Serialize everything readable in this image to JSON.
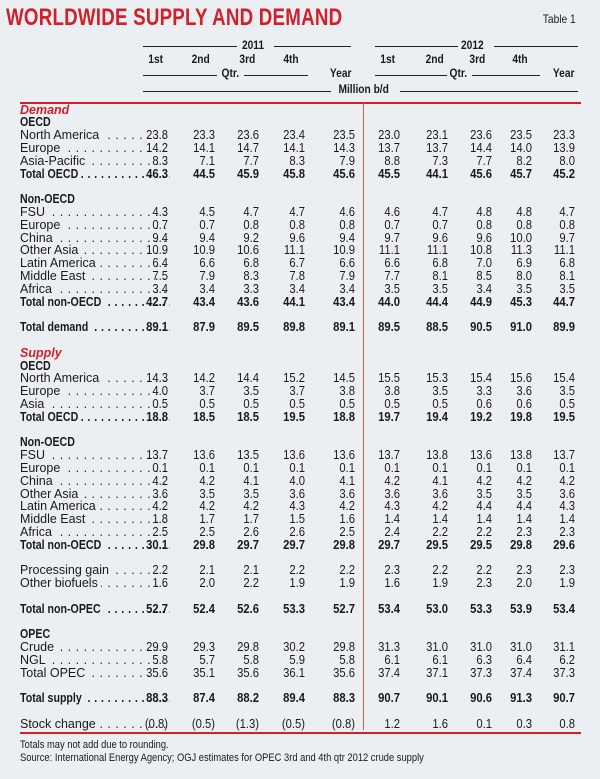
{
  "title": "WORLDWIDE SUPPLY AND DEMAND",
  "table_number": "Table 1",
  "header": {
    "years": [
      "2011",
      "2012"
    ],
    "quarters": [
      "1st",
      "2nd",
      "3rd",
      "4th"
    ],
    "qtr_label": "Qtr.",
    "year_label": "Year",
    "unit": "Million b/d"
  },
  "accent_color": "#d0202a",
  "rows": [
    {
      "type": "section",
      "label": "Demand"
    },
    {
      "type": "group",
      "label": "OECD"
    },
    {
      "type": "row",
      "label": "North America",
      "values": [
        "23.8",
        "23.3",
        "23.6",
        "23.4",
        "23.5",
        "23.0",
        "23.1",
        "23.6",
        "23.5",
        "23.3"
      ]
    },
    {
      "type": "row",
      "label": "Europe",
      "values": [
        "14.2",
        "14.1",
        "14.7",
        "14.1",
        "14.3",
        "13.7",
        "13.7",
        "14.4",
        "14.0",
        "13.9"
      ]
    },
    {
      "type": "row",
      "label": "Asia-Pacific",
      "values": [
        "8.3",
        "7.1",
        "7.7",
        "8.3",
        "7.9",
        "8.8",
        "7.3",
        "7.7",
        "8.2",
        "8.0"
      ]
    },
    {
      "type": "total",
      "label": "Total OECD",
      "values": [
        "46.3",
        "44.5",
        "45.9",
        "45.8",
        "45.6",
        "45.5",
        "44.1",
        "45.6",
        "45.7",
        "45.2"
      ]
    },
    {
      "type": "spacer"
    },
    {
      "type": "group",
      "label": "Non-OECD"
    },
    {
      "type": "row",
      "label": "FSU",
      "values": [
        "4.3",
        "4.5",
        "4.7",
        "4.7",
        "4.6",
        "4.6",
        "4.7",
        "4.8",
        "4.8",
        "4.7"
      ]
    },
    {
      "type": "row",
      "label": "Europe",
      "values": [
        "0.7",
        "0.7",
        "0.8",
        "0.8",
        "0.8",
        "0.7",
        "0.7",
        "0.8",
        "0.8",
        "0.8"
      ]
    },
    {
      "type": "row",
      "label": "China",
      "values": [
        "9.4",
        "9.4",
        "9.2",
        "9.6",
        "9.4",
        "9.7",
        "9.6",
        "9.6",
        "10.0",
        "9.7"
      ]
    },
    {
      "type": "row",
      "label": "Other Asia",
      "values": [
        "10.9",
        "10.9",
        "10.6",
        "11.1",
        "10.9",
        "11.1",
        "11.1",
        "10.8",
        "11.3",
        "11.1"
      ]
    },
    {
      "type": "row",
      "label": "Latin America",
      "values": [
        "6.4",
        "6.6",
        "6.8",
        "6.7",
        "6.6",
        "6.6",
        "6.8",
        "7.0",
        "6.9",
        "6.8"
      ]
    },
    {
      "type": "row",
      "label": "Middle East",
      "values": [
        "7.5",
        "7.9",
        "8.3",
        "7.8",
        "7.9",
        "7.7",
        "8.1",
        "8.5",
        "8.0",
        "8.1"
      ]
    },
    {
      "type": "row",
      "label": "Africa",
      "values": [
        "3.4",
        "3.4",
        "3.3",
        "3.4",
        "3.4",
        "3.5",
        "3.5",
        "3.4",
        "3.5",
        "3.5"
      ]
    },
    {
      "type": "total",
      "label": "Total non-OECD",
      "values": [
        "42.7",
        "43.4",
        "43.6",
        "44.1",
        "43.4",
        "44.0",
        "44.4",
        "44.9",
        "45.3",
        "44.7"
      ]
    },
    {
      "type": "spacer"
    },
    {
      "type": "total",
      "label": "Total demand",
      "values": [
        "89.1",
        "87.9",
        "89.5",
        "89.8",
        "89.1",
        "89.5",
        "88.5",
        "90.5",
        "91.0",
        "89.9"
      ]
    },
    {
      "type": "spacer"
    },
    {
      "type": "section",
      "label": "Supply"
    },
    {
      "type": "group",
      "label": "OECD"
    },
    {
      "type": "row",
      "label": "North America",
      "values": [
        "14.3",
        "14.2",
        "14.4",
        "15.2",
        "14.5",
        "15.5",
        "15.3",
        "15.4",
        "15.6",
        "15.4"
      ]
    },
    {
      "type": "row",
      "label": "Europe",
      "values": [
        "4.0",
        "3.7",
        "3.5",
        "3.7",
        "3.8",
        "3.8",
        "3.5",
        "3.3",
        "3.6",
        "3.5"
      ]
    },
    {
      "type": "row",
      "label": "Asia",
      "values": [
        "0.5",
        "0.5",
        "0.5",
        "0.5",
        "0.5",
        "0.5",
        "0.5",
        "0.6",
        "0.6",
        "0.5"
      ]
    },
    {
      "type": "total",
      "label": "Total OECD",
      "values": [
        "18.8",
        "18.5",
        "18.5",
        "19.5",
        "18.8",
        "19.7",
        "19.4",
        "19.2",
        "19.8",
        "19.5"
      ]
    },
    {
      "type": "spacer"
    },
    {
      "type": "group",
      "label": "Non-OECD"
    },
    {
      "type": "row",
      "label": "FSU",
      "values": [
        "13.7",
        "13.6",
        "13.5",
        "13.6",
        "13.6",
        "13.7",
        "13.8",
        "13.6",
        "13.8",
        "13.7"
      ]
    },
    {
      "type": "row",
      "label": "Europe",
      "values": [
        "0.1",
        "0.1",
        "0.1",
        "0.1",
        "0.1",
        "0.1",
        "0.1",
        "0.1",
        "0.1",
        "0.1"
      ]
    },
    {
      "type": "row",
      "label": "China",
      "values": [
        "4.2",
        "4.2",
        "4.1",
        "4.0",
        "4.1",
        "4.2",
        "4.1",
        "4.2",
        "4.2",
        "4.2"
      ]
    },
    {
      "type": "row",
      "label": "Other Asia",
      "values": [
        "3.6",
        "3.5",
        "3.5",
        "3.6",
        "3.6",
        "3.6",
        "3.6",
        "3.5",
        "3.5",
        "3.6"
      ]
    },
    {
      "type": "row",
      "label": "Latin America",
      "values": [
        "4.2",
        "4.2",
        "4.2",
        "4.3",
        "4.2",
        "4.3",
        "4.2",
        "4.4",
        "4.4",
        "4.3"
      ]
    },
    {
      "type": "row",
      "label": "Middle East",
      "values": [
        "1.8",
        "1.7",
        "1.7",
        "1.5",
        "1.6",
        "1.4",
        "1.4",
        "1.4",
        "1.4",
        "1.4"
      ]
    },
    {
      "type": "row",
      "label": "Africa",
      "values": [
        "2.5",
        "2.5",
        "2.6",
        "2.6",
        "2.5",
        "2.4",
        "2.2",
        "2.2",
        "2.3",
        "2.3"
      ]
    },
    {
      "type": "total",
      "label": "Total non-OECD",
      "values": [
        "30.1",
        "29.8",
        "29.7",
        "29.7",
        "29.8",
        "29.7",
        "29.5",
        "29.5",
        "29.8",
        "29.6"
      ]
    },
    {
      "type": "spacer"
    },
    {
      "type": "row",
      "label": "Processing gain",
      "values": [
        "2.2",
        "2.1",
        "2.1",
        "2.2",
        "2.2",
        "2.3",
        "2.2",
        "2.2",
        "2.3",
        "2.3"
      ]
    },
    {
      "type": "row",
      "label": "Other biofuels",
      "values": [
        "1.6",
        "2.0",
        "2.2",
        "1.9",
        "1.9",
        "1.6",
        "1.9",
        "2.3",
        "2.0",
        "1.9"
      ]
    },
    {
      "type": "spacer"
    },
    {
      "type": "total",
      "label": "Total non-OPEC",
      "values": [
        "52.7",
        "52.4",
        "52.6",
        "53.3",
        "52.7",
        "53.4",
        "53.0",
        "53.3",
        "53.9",
        "53.4"
      ]
    },
    {
      "type": "spacer"
    },
    {
      "type": "group",
      "label": "OPEC"
    },
    {
      "type": "row",
      "label": "Crude",
      "values": [
        "29.9",
        "29.3",
        "29.8",
        "30.2",
        "29.8",
        "31.3",
        "31.0",
        "31.0",
        "31.0",
        "31.1"
      ]
    },
    {
      "type": "row",
      "label": "NGL",
      "values": [
        "5.8",
        "5.7",
        "5.8",
        "5.9",
        "5.8",
        "6.1",
        "6.1",
        "6.3",
        "6.4",
        "6.2"
      ]
    },
    {
      "type": "row",
      "label": "Total OPEC",
      "values": [
        "35.6",
        "35.1",
        "35.6",
        "36.1",
        "35.6",
        "37.4",
        "37.1",
        "37.3",
        "37.4",
        "37.3"
      ]
    },
    {
      "type": "spacer"
    },
    {
      "type": "total",
      "label": "Total supply",
      "values": [
        "88.3",
        "87.4",
        "88.2",
        "89.4",
        "88.3",
        "90.7",
        "90.1",
        "90.6",
        "91.3",
        "90.7"
      ]
    },
    {
      "type": "spacer"
    },
    {
      "type": "row",
      "label": "Stock change",
      "values": [
        "(0.8)",
        "(0.5)",
        "(1.3)",
        "(0.5)",
        "(0.8)",
        "1.2",
        "1.6",
        "0.1",
        "0.3",
        "0.8"
      ]
    }
  ],
  "notes": [
    "Totals may not add due to rounding.",
    "Source: International Energy Agency; OGJ estimates for OPEC 3rd and 4th qtr 2012 crude supply"
  ]
}
